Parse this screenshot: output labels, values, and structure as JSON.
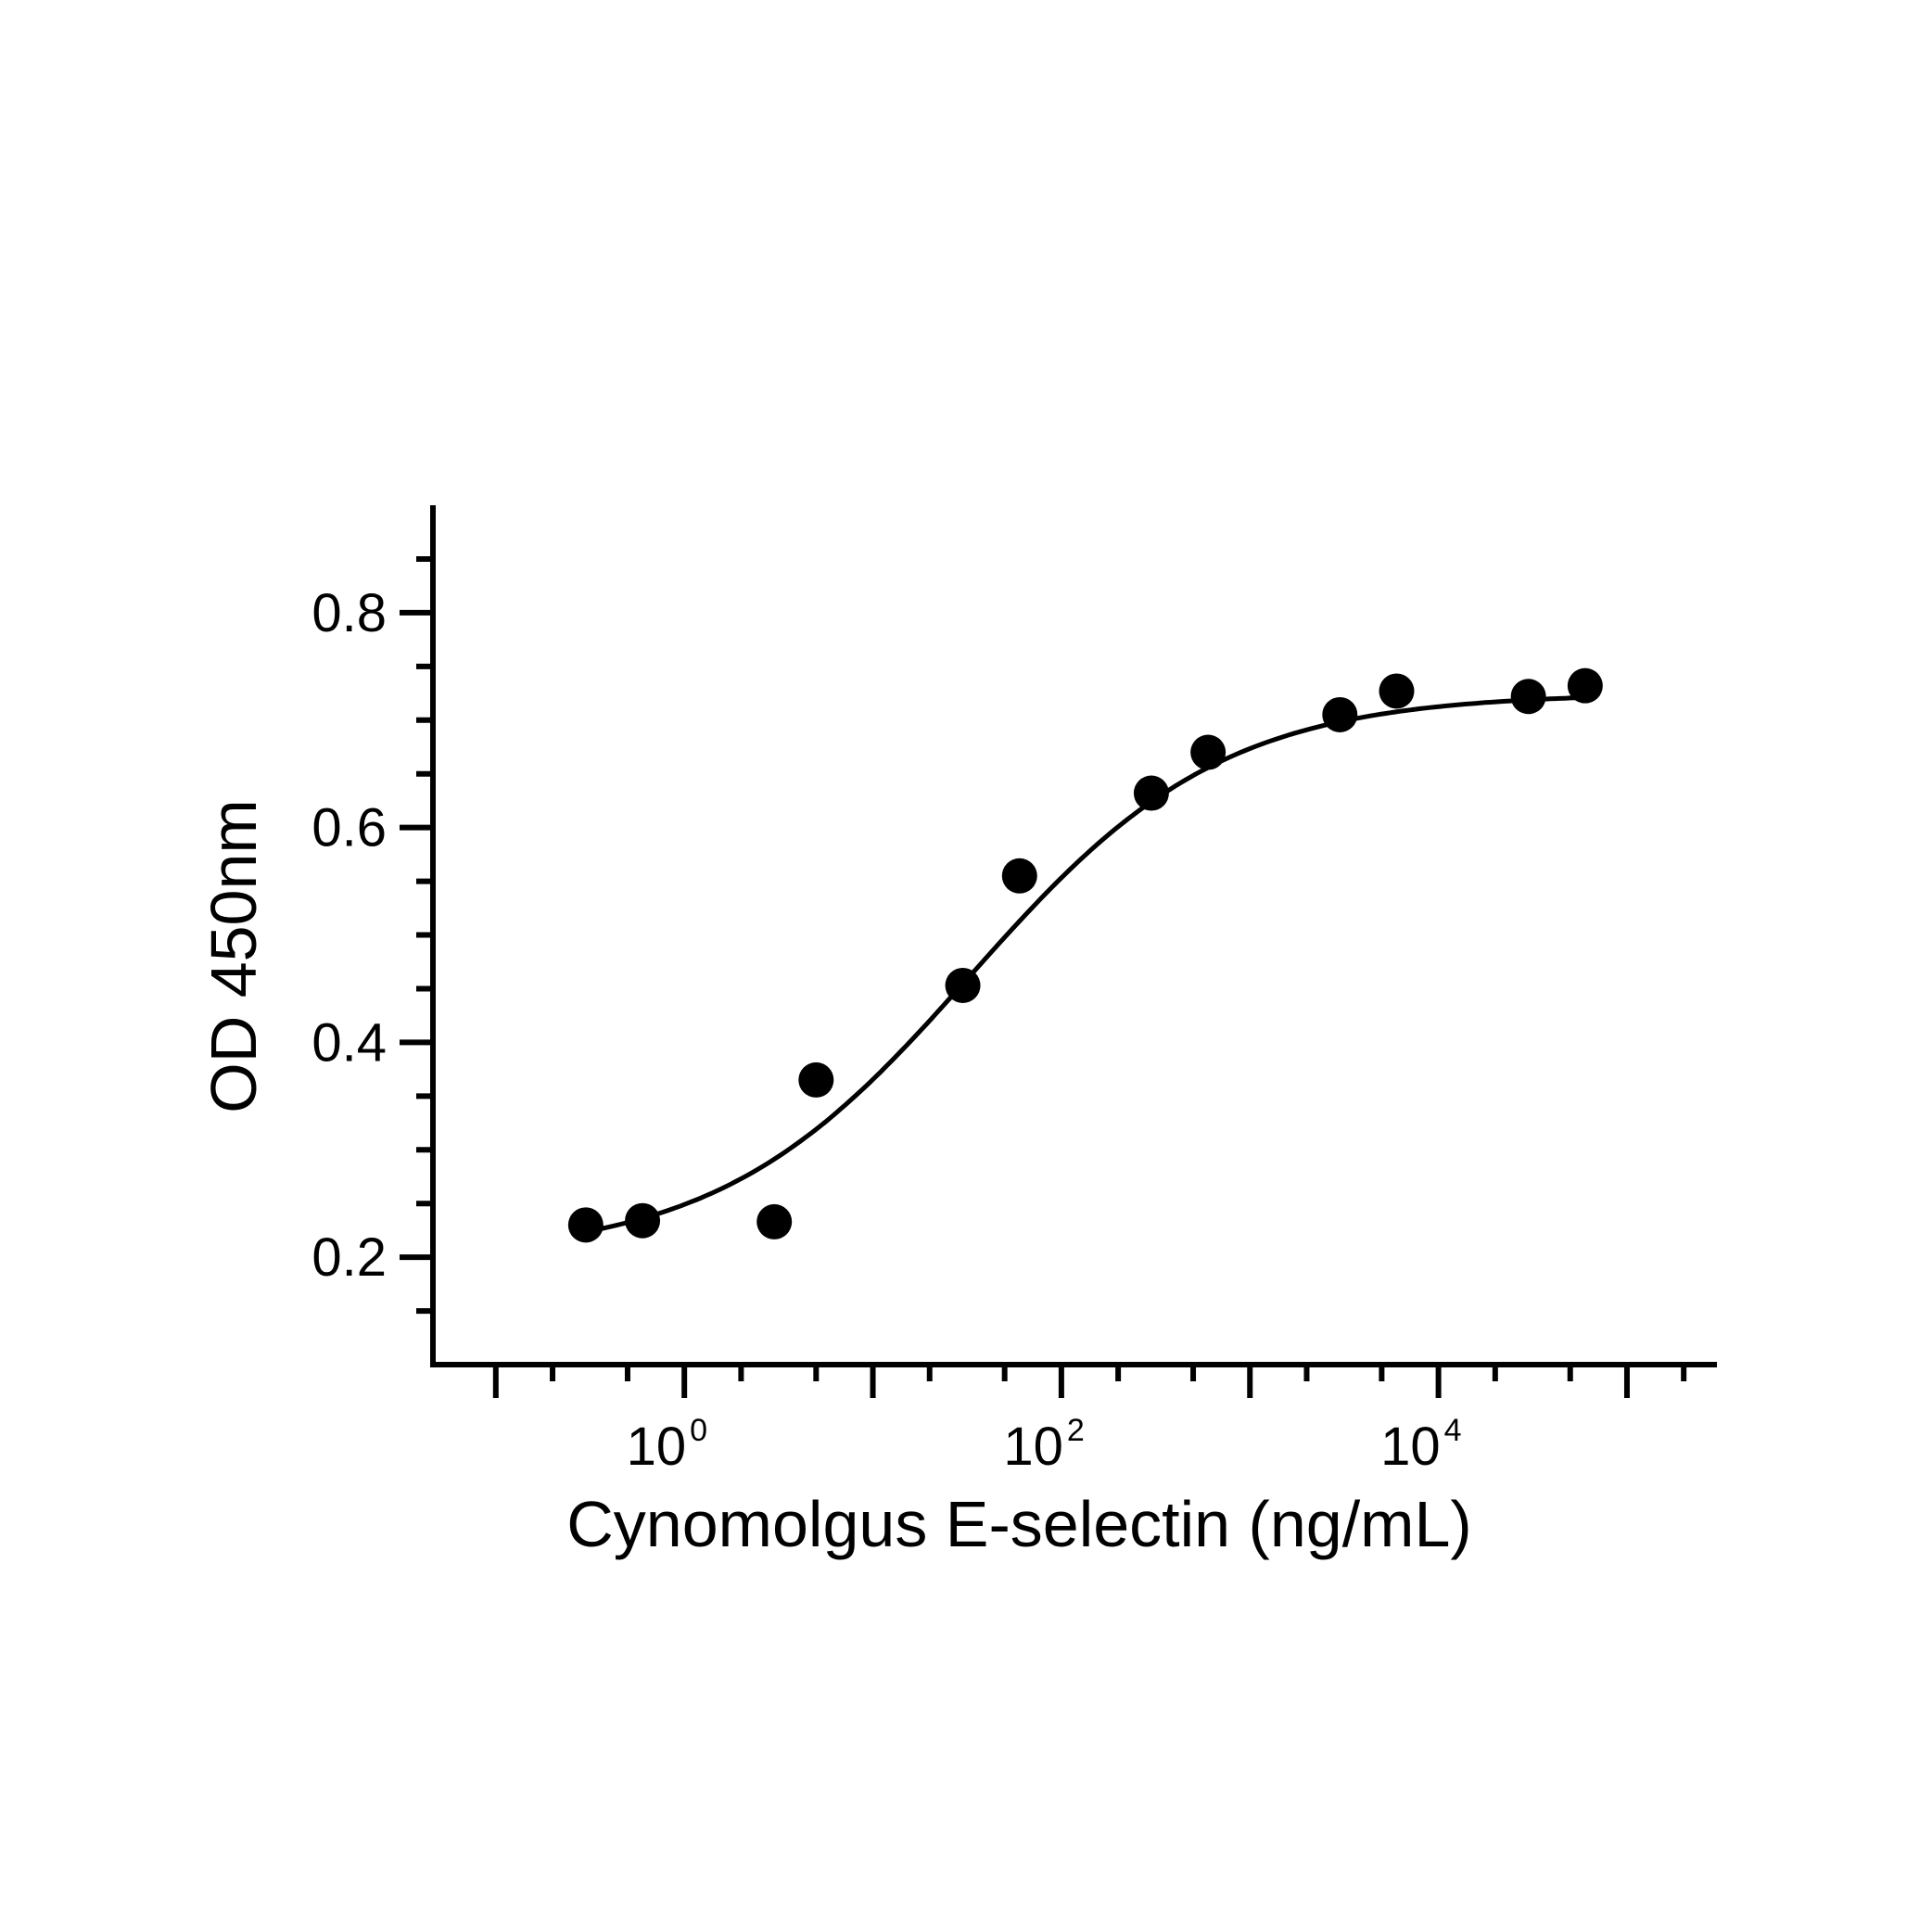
{
  "chart_data": {
    "type": "scatter",
    "title": "",
    "xlabel": "Cynomolgus E-selectin (ng/mL)",
    "ylabel": "OD 450nm",
    "x_scale": "log10",
    "xlim": [
      0.0464,
      300000
    ],
    "ylim": [
      0.1,
      0.9
    ],
    "grid": false,
    "legend": "none",
    "x_tick_labels": [
      {
        "value": 1,
        "base": "10",
        "exp": "0"
      },
      {
        "value": 100,
        "base": "10",
        "exp": "2"
      },
      {
        "value": 10000,
        "base": "10",
        "exp": "4"
      }
    ],
    "y_tick_labels": [
      {
        "value": 0.2,
        "label": "0.2"
      },
      {
        "value": 0.4,
        "label": "0.4"
      },
      {
        "value": 0.6,
        "label": "0.6"
      },
      {
        "value": 0.8,
        "label": "0.8"
      }
    ],
    "points": [
      {
        "x": 0.3,
        "y": 0.23
      },
      {
        "x": 0.6,
        "y": 0.234
      },
      {
        "x": 3.0,
        "y": 0.233
      },
      {
        "x": 5.0,
        "y": 0.365
      },
      {
        "x": 30,
        "y": 0.453
      },
      {
        "x": 60,
        "y": 0.555
      },
      {
        "x": 300,
        "y": 0.632
      },
      {
        "x": 600,
        "y": 0.67
      },
      {
        "x": 3000,
        "y": 0.705
      },
      {
        "x": 6000,
        "y": 0.727
      },
      {
        "x": 30000,
        "y": 0.722
      },
      {
        "x": 60000,
        "y": 0.732
      }
    ],
    "fit_curve": {
      "model": "4PL",
      "bottom": 0.2,
      "top": 0.725,
      "ec50": 33,
      "hill": 0.65,
      "x_range": [
        0.3,
        60000
      ]
    },
    "colors": {
      "marks": "#000000",
      "background": "#ffffff"
    }
  }
}
